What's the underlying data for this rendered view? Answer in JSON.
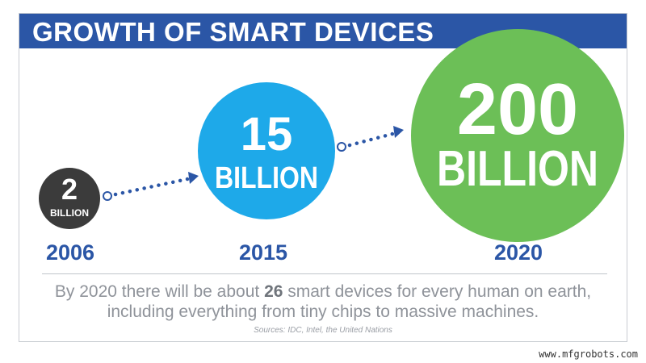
{
  "header": {
    "title": "GROWTH OF SMART DEVICES"
  },
  "chart_data": {
    "type": "bubble",
    "title": "GROWTH OF SMART DEVICES",
    "categories": [
      "2006",
      "2015",
      "2020"
    ],
    "values": [
      2,
      15,
      200
    ],
    "unit": "BILLION",
    "bubbles": [
      {
        "year": "2006",
        "value": 2,
        "number_label": "2",
        "unit_label": "BILLION",
        "color": "#3b3b3b"
      },
      {
        "year": "2015",
        "value": 15,
        "number_label": "15",
        "unit_label": "BILLION",
        "color": "#1ea9e9"
      },
      {
        "year": "2020",
        "value": 200,
        "number_label": "200",
        "unit_label": "BILLION",
        "color": "#6cbf57"
      }
    ],
    "arrow_color": "#2b56a6"
  },
  "footer": {
    "caption_pre": "By 2020 there will be about ",
    "caption_bold": "26",
    "caption_post": " smart devices for every human on earth, including everything from tiny chips to massive machines.",
    "sources": "Sources: IDC, Intel, the United Nations"
  },
  "watermark": "www.mfgrobots.com",
  "colors": {
    "brand_blue": "#2b56a6",
    "caption_gray": "#8f939a"
  }
}
